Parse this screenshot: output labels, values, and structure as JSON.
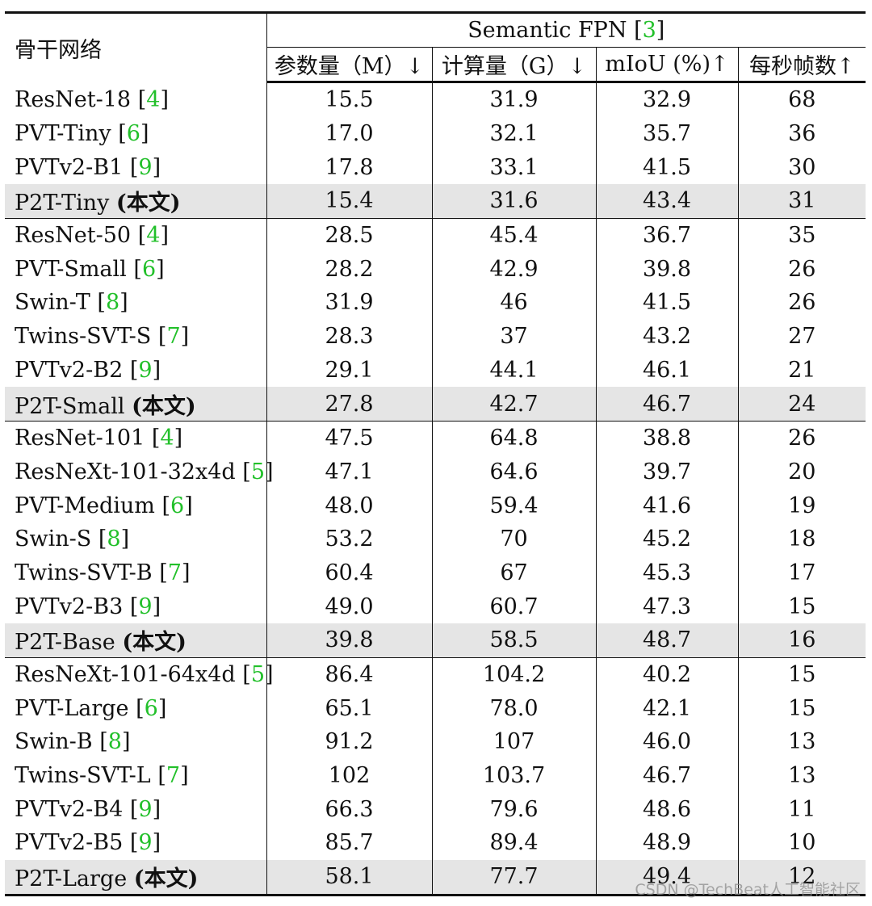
{
  "table": {
    "backbone_header": "骨干网络",
    "group_header": "Semantic FPN",
    "group_ref": "3",
    "columns": [
      "参数量（M）↓",
      "计算量（G）↓",
      "mIoU (%)↑",
      "每秒帧数↑"
    ],
    "groups": [
      [
        {
          "name": "ResNet-18",
          "ref": "4",
          "params": "15.5",
          "flops": "31.9",
          "miou": "32.9",
          "fps": "68"
        },
        {
          "name": "PVT-Tiny",
          "ref": "6",
          "params": "17.0",
          "flops": "32.1",
          "miou": "35.7",
          "fps": "36"
        },
        {
          "name": "PVTv2-B1",
          "ref": "9",
          "params": "17.8",
          "flops": "33.1",
          "miou": "41.5",
          "fps": "30"
        },
        {
          "name": "P2T-Tiny",
          "tag": "(本文)",
          "params": "15.4",
          "flops": "31.6",
          "miou": "43.4",
          "fps": "31"
        }
      ],
      [
        {
          "name": "ResNet-50",
          "ref": "4",
          "params": "28.5",
          "flops": "45.4",
          "miou": "36.7",
          "fps": "35"
        },
        {
          "name": "PVT-Small",
          "ref": "6",
          "params": "28.2",
          "flops": "42.9",
          "miou": "39.8",
          "fps": "26"
        },
        {
          "name": "Swin-T",
          "ref": "8",
          "params": "31.9",
          "flops": "46",
          "miou": "41.5",
          "fps": "26"
        },
        {
          "name": "Twins-SVT-S",
          "ref": "7",
          "params": "28.3",
          "flops": "37",
          "miou": "43.2",
          "fps": "27"
        },
        {
          "name": "PVTv2-B2",
          "ref": "9",
          "params": "29.1",
          "flops": "44.1",
          "miou": "46.1",
          "fps": "21"
        },
        {
          "name": "P2T-Small",
          "tag": "(本文)",
          "params": "27.8",
          "flops": "42.7",
          "miou": "46.7",
          "fps": "24"
        }
      ],
      [
        {
          "name": "ResNet-101",
          "ref": "4",
          "params": "47.5",
          "flops": "64.8",
          "miou": "38.8",
          "fps": "26"
        },
        {
          "name": "ResNeXt-101-32x4d",
          "ref": "5",
          "params": "47.1",
          "flops": "64.6",
          "miou": "39.7",
          "fps": "20"
        },
        {
          "name": "PVT-Medium",
          "ref": "6",
          "params": "48.0",
          "flops": "59.4",
          "miou": "41.6",
          "fps": "19"
        },
        {
          "name": "Swin-S",
          "ref": "8",
          "params": "53.2",
          "flops": "70",
          "miou": "45.2",
          "fps": "18"
        },
        {
          "name": "Twins-SVT-B",
          "ref": "7",
          "params": "60.4",
          "flops": "67",
          "miou": "45.3",
          "fps": "17"
        },
        {
          "name": "PVTv2-B3",
          "ref": "9",
          "params": "49.0",
          "flops": "60.7",
          "miou": "47.3",
          "fps": "15"
        },
        {
          "name": "P2T-Base",
          "tag": "(本文)",
          "params": "39.8",
          "flops": "58.5",
          "miou": "48.7",
          "fps": "16"
        }
      ],
      [
        {
          "name": "ResNeXt-101-64x4d",
          "ref": "5",
          "params": "86.4",
          "flops": "104.2",
          "miou": "40.2",
          "fps": "15"
        },
        {
          "name": "PVT-Large",
          "ref": "6",
          "params": "65.1",
          "flops": "78.0",
          "miou": "42.1",
          "fps": "15"
        },
        {
          "name": "Swin-B",
          "ref": "8",
          "params": "91.2",
          "flops": "107",
          "miou": "46.0",
          "fps": "13"
        },
        {
          "name": "Twins-SVT-L",
          "ref": "7",
          "params": "102",
          "flops": "103.7",
          "miou": "46.7",
          "fps": "13"
        },
        {
          "name": "PVTv2-B4",
          "ref": "9",
          "params": "66.3",
          "flops": "79.6",
          "miou": "48.6",
          "fps": "11"
        },
        {
          "name": "PVTv2-B5",
          "ref": "9",
          "params": "85.7",
          "flops": "89.4",
          "miou": "48.9",
          "fps": "10"
        },
        {
          "name": "P2T-Large",
          "tag": "(本文)",
          "params": "58.1",
          "flops": "77.7",
          "miou": "49.4",
          "fps": "12"
        }
      ]
    ]
  },
  "watermark": "CSDN @TechBeat人工智能社区"
}
